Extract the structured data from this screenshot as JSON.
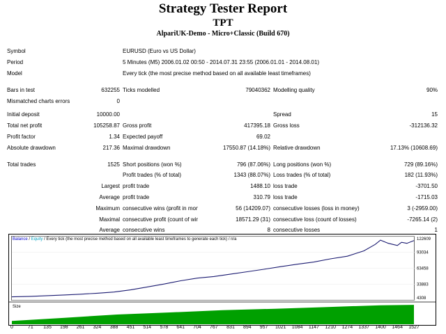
{
  "header": {
    "title": "Strategy Tester Report",
    "subtitle": "TPT",
    "server": "AlpariUK-Demo - Micro+Classic (Build 670)"
  },
  "info": {
    "symbol_label": "Symbol",
    "symbol_value": "EURUSD (Euro vs US Dollar)",
    "period_label": "Period",
    "period_value": "5 Minutes (M5) 2006.01.02 00:50 - 2014.07.31 23:55 (2006.01.01 - 2014.08.01)",
    "model_label": "Model",
    "model_value": "Every tick (the most precise method based on all available least timeframes)",
    "bars_label": "Bars in test",
    "bars_value": "632255",
    "ticks_label": "Ticks modelled",
    "ticks_value": "79040362",
    "quality_label": "Modelling quality",
    "quality_value": "90%",
    "mismatch_label": "Mismatched charts errors",
    "mismatch_value": "0"
  },
  "results": {
    "deposit_label": "Initial deposit",
    "deposit_value": "10000.00",
    "spread_label": "Spread",
    "spread_value": "15",
    "net_label": "Total net profit",
    "net_value": "105258.87",
    "gross_profit_label": "Gross profit",
    "gross_profit_value": "417395.18",
    "gross_loss_label": "Gross loss",
    "gross_loss_value": "-312136.32",
    "pf_label": "Profit factor",
    "pf_value": "1.34",
    "payoff_label": "Expected payoff",
    "payoff_value": "69.02",
    "absdd_label": "Absolute drawdown",
    "absdd_value": "217.36",
    "maxdd_label": "Maximal drawdown",
    "maxdd_value": "17550.87 (14.18%)",
    "reldd_label": "Relative drawdown",
    "reldd_value": "17.13% (10608.69)",
    "trades_label": "Total trades",
    "trades_value": "1525",
    "short_label": "Short positions (won %)",
    "short_value": "796 (87.06%)",
    "long_label": "Long positions (won %)",
    "long_value": "729 (89.16%)",
    "pt_label": "Profit trades (% of total)",
    "pt_value": "1343 (88.07%)",
    "lt_label": "Loss trades (% of total)",
    "lt_value": "182 (11.93%)",
    "largest_label": "Largest",
    "largest_pt_label": "profit trade",
    "largest_pt_value": "1488.10",
    "largest_lt_label": "loss trade",
    "largest_lt_value": "-3701.50",
    "average_label": "Average",
    "average_pt_label": "profit trade",
    "average_pt_value": "310.79",
    "average_lt_label": "loss trade",
    "average_lt_value": "-1715.03",
    "maximum_label": "Maximum",
    "max_cw_label": "consecutive wins (profit in money)",
    "max_cw_value": "56 (14209.07)",
    "max_cl_label": "consecutive losses (loss in money)",
    "max_cl_value": "3 (-2959.00)",
    "maximal_label": "Maximal",
    "mx_cp_label": "consecutive profit (count of wins)",
    "mx_cp_value": "18571.29 (31)",
    "mx_cl_label": "consecutive loss (count of losses)",
    "mx_cl_value": "-7265.14 (2)",
    "avg2_label": "Average",
    "avg_cw_label": "consecutive wins",
    "avg_cw_value": "8",
    "avg_cl_label": "consecutive losses",
    "avg_cl_value": "1"
  },
  "chart_header": {
    "balance": "Balance",
    "sep": " / ",
    "equity": "Equity",
    "desc": " / Every tick (the most precise method based on all available least timeframes to generate each tick) / n/a"
  },
  "size_label": "Size",
  "colors": {
    "balance": "#191970",
    "equity": "#7fb8d8",
    "size": "#00a000",
    "label_blue": "#0000cc"
  },
  "chart_data": {
    "type": "line",
    "y_ticks": [
      "122609",
      "93034",
      "63458",
      "33883",
      "4308"
    ],
    "y_range": [
      4308,
      122609
    ],
    "x_ticks": [
      "0",
      "71",
      "135",
      "198",
      "261",
      "324",
      "388",
      "451",
      "514",
      "578",
      "641",
      "704",
      "767",
      "831",
      "894",
      "957",
      "1021",
      "1084",
      "1147",
      "1210",
      "1274",
      "1337",
      "1400",
      "1464",
      "1527"
    ],
    "x_range": [
      0,
      1527
    ],
    "series": [
      {
        "name": "Balance",
        "x": [
          0,
          71,
          135,
          198,
          261,
          324,
          388,
          451,
          514,
          578,
          641,
          704,
          767,
          831,
          894,
          957,
          1021,
          1084,
          1147,
          1210,
          1274,
          1337,
          1380,
          1400,
          1430,
          1464,
          1480,
          1500,
          1527
        ],
        "y": [
          10000,
          11000,
          12200,
          13500,
          15000,
          16800,
          19000,
          23000,
          28500,
          34000,
          40000,
          45000,
          48000,
          52500,
          57000,
          61500,
          66500,
          71000,
          75000,
          81000,
          86000,
          96000,
          108000,
          116000,
          110000,
          106000,
          112000,
          110000,
          115259
        ]
      }
    ],
    "size_series": {
      "name": "Size",
      "x": [
        0,
        200,
        400,
        600,
        800,
        1000,
        1200,
        1400,
        1527
      ],
      "y": [
        0.15,
        0.3,
        0.45,
        0.55,
        0.65,
        0.72,
        0.8,
        0.88,
        0.9
      ]
    }
  }
}
